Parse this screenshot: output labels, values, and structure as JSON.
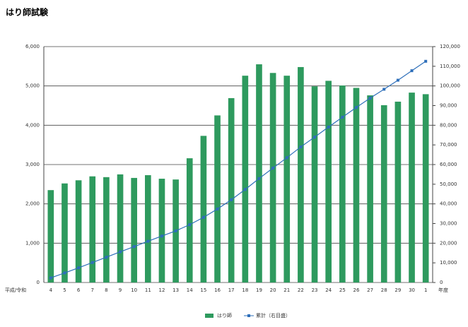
{
  "chart_data": {
    "type": "bar-line",
    "title": "はり師試験",
    "x_label_left": "平成/令和",
    "x_label_right": "年度",
    "categories": [
      "4",
      "5",
      "6",
      "7",
      "8",
      "9",
      "10",
      "11",
      "12",
      "13",
      "14",
      "15",
      "16",
      "17",
      "18",
      "19",
      "20",
      "21",
      "22",
      "23",
      "24",
      "25",
      "26",
      "27",
      "28",
      "29",
      "30",
      "1"
    ],
    "series": [
      {
        "name": "はり師",
        "color": "#2e9a5e",
        "values": [
          2350,
          2520,
          2600,
          2700,
          2680,
          2750,
          2660,
          2730,
          2640,
          2620,
          3160,
          3730,
          4250,
          4690,
          5260,
          5550,
          5330,
          5260,
          5480,
          4990,
          5130,
          5010,
          4950,
          4760,
          4510,
          4600,
          4830,
          4790
        ]
      },
      {
        "name": "累計（右目盛）",
        "color": "#2e6fba",
        "axis": "y2",
        "values": [
          2350,
          4870,
          7470,
          10170,
          12850,
          15600,
          18260,
          20990,
          23630,
          26250,
          29410,
          33140,
          37390,
          42080,
          47340,
          52890,
          58220,
          63480,
          68960,
          73950,
          79080,
          84090,
          89040,
          93800,
          98310,
          102910,
          107740,
          112530
        ]
      }
    ],
    "ylim": [
      0,
      6000
    ],
    "yticks": [
      0,
      {
        "value": 1000,
        "label": "1,000"
      },
      {
        "value": 2000,
        "label": "2,000"
      },
      {
        "value": 3000,
        "label": "3,000"
      },
      {
        "value": 4000,
        "label": "4,000"
      },
      {
        "value": 5000,
        "label": "5,000"
      },
      {
        "value": 6000,
        "label": "6,000"
      }
    ],
    "y2lim": [
      0,
      120000
    ],
    "y2ticks": [
      0,
      {
        "value": 10000,
        "label": "10,000"
      },
      {
        "value": 20000,
        "label": "20,000"
      },
      {
        "value": 30000,
        "label": "30,000"
      },
      {
        "value": 40000,
        "label": "40,000"
      },
      {
        "value": 50000,
        "label": "50,000"
      },
      {
        "value": 60000,
        "label": "60,000"
      },
      {
        "value": 70000,
        "label": "70,000"
      },
      {
        "value": 80000,
        "label": "80,000"
      },
      {
        "value": 90000,
        "label": "90,000"
      },
      {
        "value": 100000,
        "label": "100,000"
      },
      {
        "value": 110000,
        "label": "110,000"
      },
      {
        "value": 120000,
        "label": "120,000"
      }
    ],
    "grid": true
  }
}
